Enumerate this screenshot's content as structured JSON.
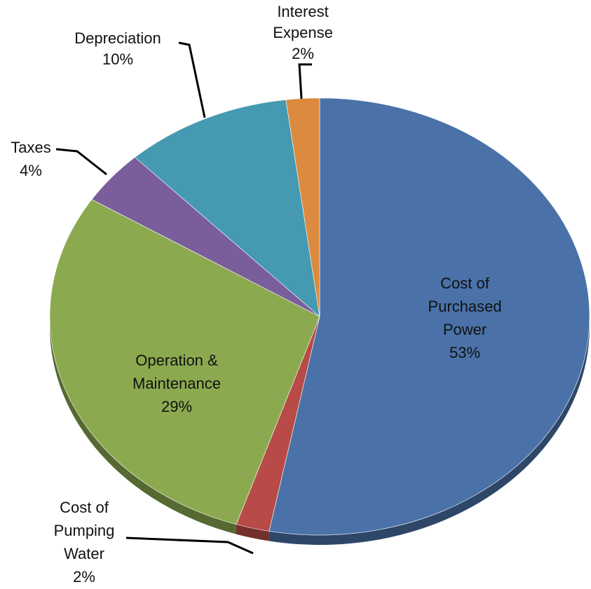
{
  "chart_data": {
    "type": "pie",
    "style": "3d",
    "slices": [
      {
        "label": [
          "Cost of",
          "Purchased",
          "Power"
        ],
        "percent_label": "53%",
        "value": 53,
        "color": "#4A72A8"
      },
      {
        "label": [
          "Cost of",
          "Pumping",
          "Water"
        ],
        "percent_label": "2%",
        "value": 2,
        "color": "#B84B47"
      },
      {
        "label": [
          "Operation &",
          "Maintenance"
        ],
        "percent_label": "29%",
        "value": 29,
        "color": "#8BAA50"
      },
      {
        "label": [
          "Taxes"
        ],
        "percent_label": "4%",
        "value": 4,
        "color": "#7A5E9B"
      },
      {
        "label": [
          "Depreciation"
        ],
        "percent_label": "10%",
        "value": 10,
        "color": "#4599B0"
      },
      {
        "label": [
          "Interest",
          "Expense"
        ],
        "percent_label": "2%",
        "value": 2,
        "color": "#DB8A3F"
      }
    ]
  }
}
